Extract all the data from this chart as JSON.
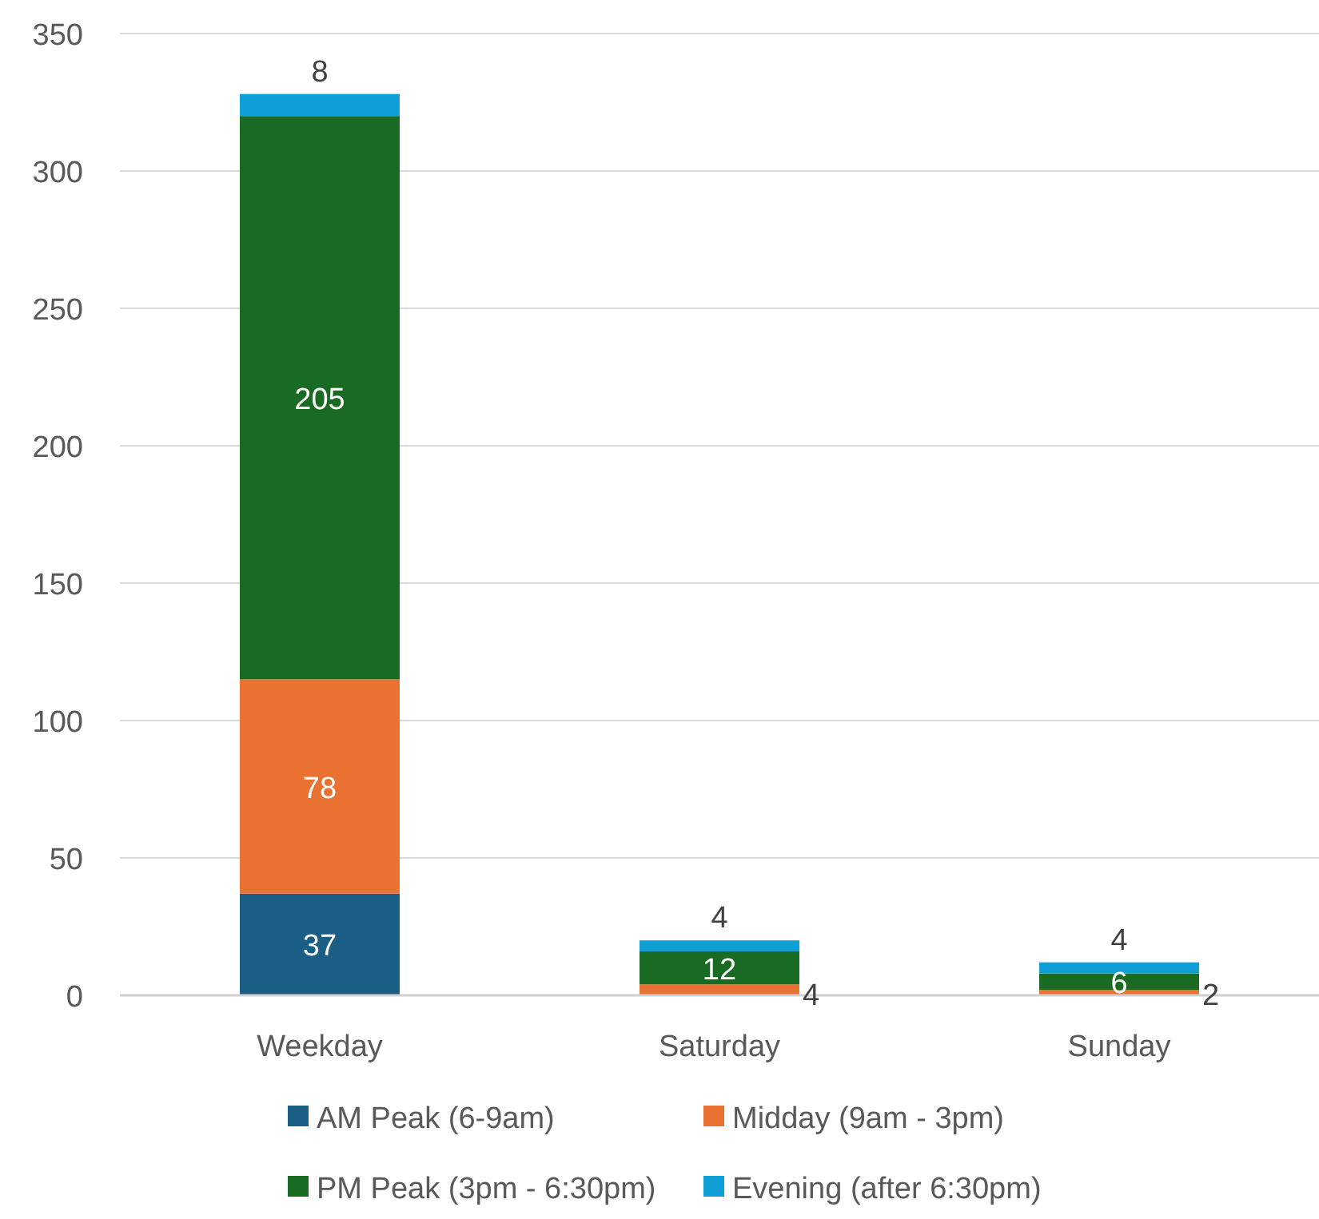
{
  "chart_data": {
    "type": "bar",
    "stacked": true,
    "categories": [
      "Weekday",
      "Saturday",
      "Sunday"
    ],
    "series": [
      {
        "name": "AM Peak (6-9am)",
        "color": "#1a5e86",
        "values": [
          37,
          0,
          0
        ],
        "value_labels": [
          "37",
          null,
          null
        ]
      },
      {
        "name": "Midday (9am - 3pm)",
        "color": "#e97132",
        "values": [
          78,
          4,
          2
        ],
        "value_labels": [
          "78",
          "4",
          "2"
        ]
      },
      {
        "name": "PM Peak (3pm - 6:30pm)",
        "color": "#196b24",
        "values": [
          205,
          12,
          6
        ],
        "value_labels": [
          "205",
          "12",
          "6"
        ]
      },
      {
        "name": "Evening (after 6:30pm)",
        "color": "#0f9ed5",
        "values": [
          8,
          4,
          4
        ],
        "value_labels": [
          "8",
          "4",
          "4"
        ]
      }
    ],
    "ylim": [
      0,
      350
    ],
    "yticks": [
      0,
      50,
      100,
      150,
      200,
      250,
      300,
      350
    ],
    "grid": "y",
    "legend": "bottom"
  }
}
